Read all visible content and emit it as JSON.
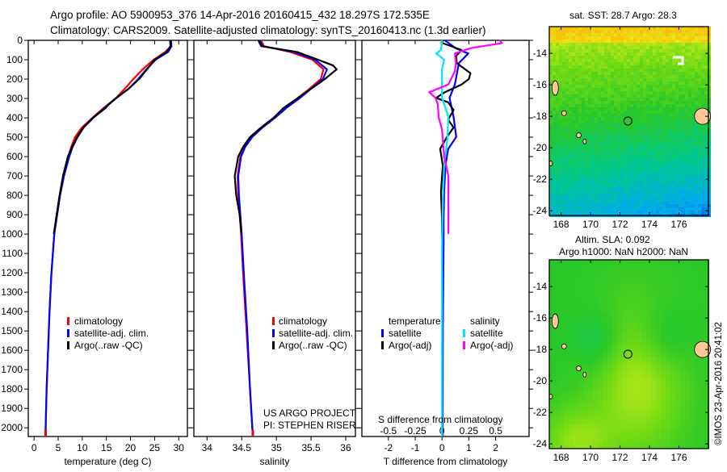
{
  "header": {
    "line1": "Argo profile: AO 5900953_376 14-Apr-2016 20160415_432 18.297S 172.535E",
    "line2": "Climatology: CARS2009. Satellite-adjusted climatology: synTS_20160413.nc (1.3d earlier)"
  },
  "colors": {
    "climatology": "#ff0000",
    "satellite": "#0000ff",
    "argo": "#000000",
    "s_satellite": "#00e5ff",
    "s_argo": "#ff00ff",
    "land": "#ffc896"
  },
  "chart_data": [
    {
      "type": "line",
      "id": "temperature",
      "xlabel": "temperature (deg C)",
      "ylabel": "",
      "xlim": [
        -1.2,
        31.8
      ],
      "ylim": [
        2045,
        0
      ],
      "xticks": [
        0,
        5,
        10,
        15,
        20,
        25,
        30
      ],
      "yticks": [
        0,
        100,
        200,
        300,
        400,
        500,
        600,
        700,
        800,
        900,
        1000,
        1100,
        1200,
        1300,
        1400,
        1500,
        1600,
        1700,
        1800,
        1900,
        2000
      ],
      "legend": [
        "climatology",
        "satellite-adj. clim.",
        "Argo(..raw -QC)"
      ],
      "series": [
        {
          "name": "climatology",
          "color": "climatology",
          "depth": [
            0,
            30,
            60,
            100,
            150,
            200,
            250,
            300,
            350,
            400,
            450,
            500,
            550,
            600,
            700,
            800,
            900,
            1000,
            1200,
            1400,
            1600,
            1800,
            2000,
            2045
          ],
          "values": [
            28.3,
            28.4,
            27.2,
            24.8,
            22.5,
            20.6,
            18.8,
            16.9,
            14.4,
            12.1,
            9.9,
            8.5,
            7.7,
            7.1,
            6.1,
            5.3,
            4.7,
            4.2,
            3.6,
            3.2,
            2.9,
            2.6,
            2.4,
            2.4
          ]
        },
        {
          "name": "satellite-adj. clim.",
          "color": "satellite",
          "depth": [
            0,
            30,
            60,
            100,
            150,
            200,
            250,
            300,
            350,
            400,
            450,
            500,
            550,
            600,
            700,
            800,
            900,
            1000,
            1200,
            1400,
            1600,
            1800,
            2000,
            2045
          ],
          "values": [
            28.4,
            28.5,
            27.8,
            25.2,
            23.3,
            21.6,
            19.6,
            17.0,
            14.6,
            12.3,
            10.3,
            9.0,
            8.0,
            7.3,
            6.2,
            5.4,
            4.8,
            4.2,
            3.6,
            3.2,
            2.9,
            2.6,
            2.4,
            2.4
          ]
        },
        {
          "name": "Argo(..raw -QC)",
          "color": "argo",
          "depth": [
            0,
            30,
            60,
            100,
            150,
            200,
            250,
            300,
            330,
            350,
            400,
            450,
            500,
            550,
            600,
            650,
            700,
            800,
            900,
            1000
          ],
          "values": [
            28.2,
            28.3,
            27.5,
            25.0,
            23.4,
            21.8,
            19.6,
            16.9,
            15.5,
            14.8,
            12.2,
            10.2,
            8.9,
            7.9,
            7.0,
            6.5,
            6.0,
            5.3,
            4.7,
            4.1
          ]
        }
      ]
    },
    {
      "type": "line",
      "id": "salinity",
      "xlabel": "salinity",
      "xlim": [
        33.81,
        36.14
      ],
      "ylim": [
        2045,
        0
      ],
      "xticks": [
        34,
        34.5,
        35,
        35.5,
        36
      ],
      "legend": [
        "climatology",
        "satellite-adj. clim.",
        "Argo(..raw -QC)"
      ],
      "annotation": [
        "US ARGO PROJECT",
        "PI: STEPHEN RISER"
      ],
      "series": [
        {
          "name": "climatology",
          "color": "climatology",
          "depth": [
            0,
            30,
            60,
            100,
            150,
            200,
            250,
            300,
            350,
            400,
            450,
            500,
            550,
            600,
            700,
            800,
            1000,
            1200,
            1500,
            1800,
            2045
          ],
          "values": [
            34.78,
            34.82,
            35.2,
            35.52,
            35.68,
            35.64,
            35.48,
            35.3,
            35.12,
            34.97,
            34.8,
            34.64,
            34.54,
            34.48,
            34.44,
            34.45,
            34.49,
            34.52,
            34.57,
            34.62,
            34.66
          ]
        },
        {
          "name": "satellite-adj. clim.",
          "color": "satellite",
          "depth": [
            0,
            30,
            60,
            100,
            150,
            200,
            250,
            300,
            350,
            400,
            450,
            500,
            550,
            600,
            700,
            800,
            1000,
            1200,
            1500,
            1800,
            2045
          ],
          "values": [
            34.76,
            34.8,
            35.25,
            35.56,
            35.73,
            35.67,
            35.5,
            35.33,
            35.14,
            34.98,
            34.8,
            34.65,
            34.55,
            34.49,
            34.45,
            34.46,
            34.5,
            34.53,
            34.58,
            34.62,
            34.66
          ]
        },
        {
          "name": "Argo(..raw -QC)",
          "color": "argo",
          "depth": [
            0,
            30,
            60,
            100,
            130,
            150,
            170,
            200,
            250,
            300,
            350,
            400,
            450,
            500,
            550,
            600,
            700,
            800,
            900,
            1000
          ],
          "values": [
            34.74,
            34.78,
            35.3,
            35.6,
            35.82,
            35.87,
            35.8,
            35.7,
            35.5,
            35.3,
            35.1,
            34.96,
            34.78,
            34.62,
            34.52,
            34.45,
            34.4,
            34.42,
            34.47,
            34.5
          ]
        }
      ]
    },
    {
      "type": "line",
      "id": "difference",
      "xlabel": "T difference from climatology",
      "xlabel_top": "S difference from climatology",
      "xlim": [
        -2.99,
        3.25
      ],
      "ylim": [
        2045,
        0
      ],
      "xticks": [
        -2,
        -1,
        0,
        1,
        2
      ],
      "xticks_s": [
        -0.5,
        -0.25,
        0,
        0.25,
        0.5
      ],
      "xtick_s_labels": [
        "-0.5",
        "-0.25",
        "0",
        "0.25",
        "0.5"
      ],
      "xtick_labels": [
        "-2",
        "-1",
        "0",
        "1",
        "2"
      ],
      "legend": {
        "temperature_title": "temperature",
        "salinity_title": "salinity",
        "t_sat": "satellite",
        "t_argo": "Argo(-adj)",
        "s_sat": "satellite",
        "s_argo": "Argo(-adj)"
      },
      "series": [
        {
          "name": "T satellite",
          "color": "satellite",
          "variable": "T",
          "depth": [
            0,
            12,
            40,
            68,
            117,
            228,
            297,
            395,
            499,
            561,
            645,
            783,
            922,
            1033,
            1500,
            2045
          ],
          "values": [
            0.1,
            0.23,
            0.5,
            0.98,
            0.63,
            0.48,
            0.28,
            0.43,
            0.53,
            0.23,
            0.13,
            0.08,
            0.06,
            0.06,
            0.03,
            0.02
          ]
        },
        {
          "name": "T Argo",
          "color": "argo",
          "variable": "T",
          "depth": [
            0,
            12,
            50,
            80,
            117,
            170,
            200,
            228,
            270,
            297,
            320,
            360,
            410,
            450,
            500,
            560,
            645,
            783,
            920,
            1010
          ],
          "values": [
            0.05,
            -0.02,
            0.73,
            0.53,
            0.55,
            1.06,
            1.0,
            0.73,
            0.08,
            -0.22,
            0.23,
            0.43,
            0.23,
            0.43,
            0.18,
            -0.07,
            0.03,
            -0.04,
            0.0,
            0.0
          ]
        },
        {
          "name": "S satellite",
          "color": "s_satellite",
          "variable": "S",
          "depth": [
            0,
            12,
            50,
            68,
            100,
            150,
            250,
            297,
            395,
            510,
            645,
            783,
            1033,
            1500,
            2045
          ],
          "values": [
            0.0,
            0.0,
            -0.01,
            -0.055,
            0.02,
            0.0,
            0.0,
            0.0,
            0.06,
            0.05,
            0.02,
            0.01,
            0.0,
            0.0,
            0.0
          ]
        },
        {
          "name": "S Argo",
          "color": "s_argo",
          "variable": "S",
          "depth": [
            0,
            14,
            40,
            68,
            117,
            160,
            228,
            268,
            297,
            330,
            400,
            460,
            530,
            600,
            700,
            800,
            880,
            1000
          ],
          "values": [
            0.54,
            0.56,
            0.27,
            0.12,
            0.13,
            0.12,
            0.06,
            -0.12,
            -0.06,
            -0.04,
            -0.03,
            0.0,
            0.01,
            0.02,
            0.06,
            0.06,
            0.06,
            0.06
          ]
        }
      ]
    },
    {
      "type": "heatmap",
      "id": "sst-map",
      "title": "sat. SST: 28.7 Argo: 28.3",
      "xlim": [
        167.2,
        178.0
      ],
      "ylim": [
        -24.3,
        -12.3
      ],
      "xticks": [
        168,
        170,
        172,
        174,
        176
      ],
      "yticks": [
        -14,
        -16,
        -18,
        -20,
        -22,
        -24
      ],
      "argo_position": [
        172.535,
        -18.297
      ]
    },
    {
      "type": "heatmap",
      "id": "sla-map",
      "title": "Altim. SLA: 0.092",
      "subtitle": "Argo h1000: NaN h2000: NaN",
      "xlim": [
        167.2,
        178.0
      ],
      "ylim": [
        -24.3,
        -12.3
      ],
      "xticks": [
        168,
        170,
        172,
        174,
        176
      ],
      "yticks": [
        -14,
        -16,
        -18,
        -20,
        -22,
        -24
      ],
      "argo_position": [
        172.535,
        -18.297
      ]
    }
  ],
  "credit": "©IMOS 23-Apr-2016 20:41:02"
}
